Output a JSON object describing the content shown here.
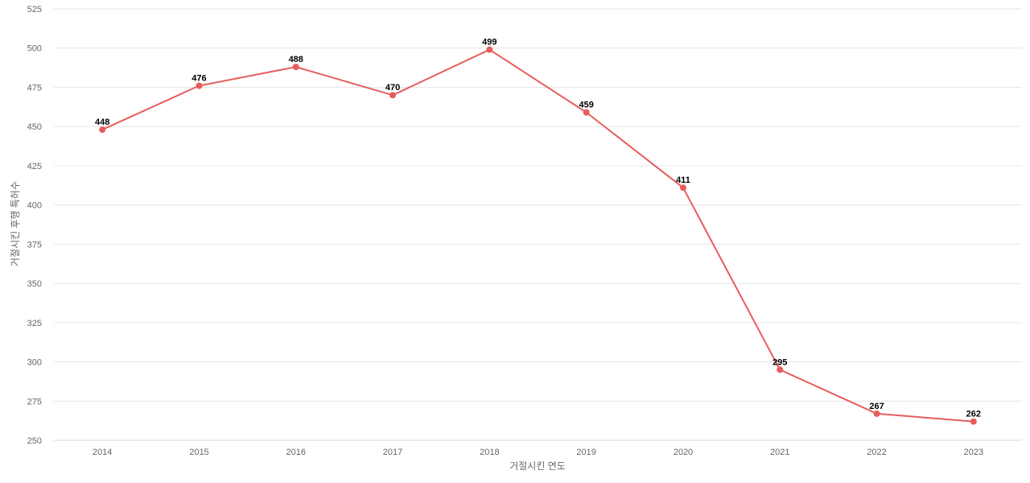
{
  "chart_data": {
    "type": "line",
    "categories": [
      "2014",
      "2015",
      "2016",
      "2017",
      "2018",
      "2019",
      "2020",
      "2021",
      "2022",
      "2023"
    ],
    "series": [
      {
        "values": [
          448,
          476,
          488,
          470,
          499,
          459,
          411,
          295,
          267,
          262
        ],
        "color": "#e85c5c"
      }
    ],
    "title": "",
    "xlabel": "거절시킨 연도",
    "ylabel": "거절시킨 후행 특허수",
    "ylim": [
      250,
      525
    ],
    "yticks": [
      250,
      275,
      300,
      325,
      350,
      375,
      400,
      425,
      450,
      475,
      500,
      525
    ],
    "grid": true,
    "legend": "none"
  }
}
